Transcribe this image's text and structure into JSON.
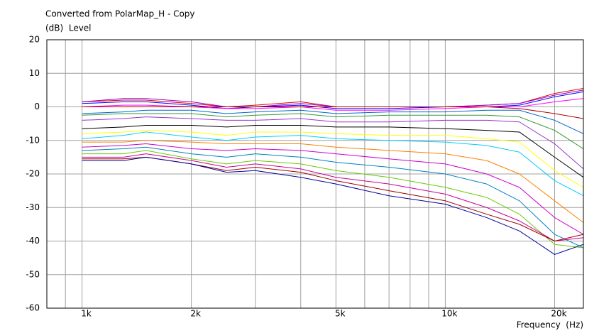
{
  "chart_data": {
    "type": "line",
    "title": "Converted from PolarMap_H - Copy",
    "y_label": "(dB)  Level",
    "x_label": "Frequency  (Hz)",
    "x_scale": "log",
    "grid": true,
    "xlim": [
      800,
      24000
    ],
    "ylim": [
      -60,
      20
    ],
    "xticks": [
      {
        "value": 1000,
        "label": "1k"
      },
      {
        "value": 2000,
        "label": "2k"
      },
      {
        "value": 5000,
        "label": "5k"
      },
      {
        "value": 10000,
        "label": "10k"
      },
      {
        "value": 20000,
        "label": "20k"
      }
    ],
    "x_minor_grid": [
      900,
      3000,
      4000,
      6000,
      7000,
      8000,
      9000
    ],
    "yticks": [
      20,
      10,
      0,
      -10,
      -20,
      -30,
      -40,
      -50,
      -60
    ],
    "x": [
      1000,
      1300,
      1500,
      2000,
      2500,
      3000,
      4000,
      5000,
      7000,
      10000,
      13000,
      16000,
      20000,
      24000
    ],
    "series": [
      {
        "color": "#e00000",
        "values": [
          1.5,
          2,
          2,
          1,
          0,
          0.5,
          1.5,
          0,
          0,
          0,
          0.5,
          1,
          4,
          5.5
        ]
      },
      {
        "color": "#9900cc",
        "values": [
          1.5,
          2.5,
          2.5,
          1.5,
          0,
          0,
          1,
          0,
          0,
          0,
          0.5,
          1,
          3.5,
          5
        ]
      },
      {
        "color": "#0000ff",
        "values": [
          1,
          1.5,
          1.5,
          0.5,
          -0.5,
          0,
          0.5,
          -0.5,
          -0.5,
          0,
          0,
          0.5,
          3,
          4.5
        ]
      },
      {
        "color": "#ff00ff",
        "values": [
          0,
          0.5,
          0.5,
          0,
          -0.5,
          -0.5,
          0,
          -1,
          -1,
          -0.5,
          0,
          0,
          1.5,
          2.5
        ]
      },
      {
        "color": "#b00000",
        "values": [
          0,
          0,
          0,
          0,
          0,
          0,
          0,
          0,
          0,
          0,
          0,
          -0.5,
          -2,
          -3.5
        ]
      },
      {
        "color": "#0066cc",
        "values": [
          -2,
          -1.5,
          -1,
          -1,
          -2,
          -1.5,
          -1,
          -2,
          -1.5,
          -1.5,
          -1,
          -1,
          -4,
          -8
        ]
      },
      {
        "color": "#339933",
        "values": [
          -2.5,
          -2,
          -2,
          -2,
          -3,
          -2.5,
          -2,
          -3,
          -2.5,
          -2.5,
          -2.5,
          -3,
          -7,
          -12.5
        ]
      },
      {
        "color": "#9933cc",
        "values": [
          -4,
          -3.5,
          -3,
          -3.5,
          -4,
          -4,
          -3.5,
          -4.5,
          -4.5,
          -4,
          -4,
          -4.5,
          -11,
          -18.5
        ]
      },
      {
        "color": "#000000",
        "values": [
          -6.5,
          -6,
          -5.5,
          -5.5,
          -6,
          -5.5,
          -5.5,
          -6,
          -6,
          -6.5,
          -7,
          -7.5,
          -15,
          -21
        ]
      },
      {
        "color": "#ffff00",
        "values": [
          -8,
          -7.5,
          -7,
          -7.5,
          -8.5,
          -7.5,
          -7.5,
          -8,
          -8.5,
          -8.5,
          -9.5,
          -10.5,
          -19,
          -24
        ]
      },
      {
        "color": "#00ccff",
        "values": [
          -9.5,
          -8.5,
          -7.5,
          -9,
          -10,
          -9,
          -8.5,
          -9.5,
          -10,
          -10.5,
          -11.5,
          -13.5,
          -22,
          -26.5
        ]
      },
      {
        "color": "#ff8000",
        "values": [
          -10.5,
          -10.5,
          -10,
          -10.5,
          -11,
          -11,
          -11,
          -12,
          -13,
          -14,
          -16,
          -20,
          -28,
          -34.5
        ]
      },
      {
        "color": "#cc00cc",
        "values": [
          -12,
          -11.5,
          -11,
          -12.5,
          -13,
          -12.5,
          -13,
          -14,
          -15.5,
          -17,
          -20,
          -24,
          -33,
          -38
        ]
      },
      {
        "color": "#0080c0",
        "values": [
          -13,
          -12.5,
          -12,
          -14,
          -15,
          -14,
          -15,
          -16.5,
          -18,
          -20,
          -23,
          -28,
          -38,
          -42
        ]
      },
      {
        "color": "#66cc00",
        "values": [
          -14,
          -14,
          -13,
          -15.5,
          -17,
          -16,
          -17,
          -19,
          -21,
          -24,
          -27,
          -32,
          -41,
          -42
        ]
      },
      {
        "color": "#cc0099",
        "values": [
          -15,
          -15,
          -14,
          -16,
          -18,
          -17,
          -18.5,
          -21,
          -23,
          -26,
          -30,
          -34,
          -40,
          -39
        ]
      },
      {
        "color": "#990000",
        "values": [
          -15.5,
          -15.5,
          -15,
          -17,
          -19,
          -18,
          -19.5,
          -22,
          -25,
          -28,
          -32,
          -35,
          -40,
          -38
        ]
      },
      {
        "color": "#000099",
        "values": [
          -16,
          -16,
          -15,
          -17,
          -19.5,
          -19,
          -21,
          -23,
          -26.5,
          -29,
          -33,
          -37,
          -44,
          -41
        ]
      }
    ]
  }
}
